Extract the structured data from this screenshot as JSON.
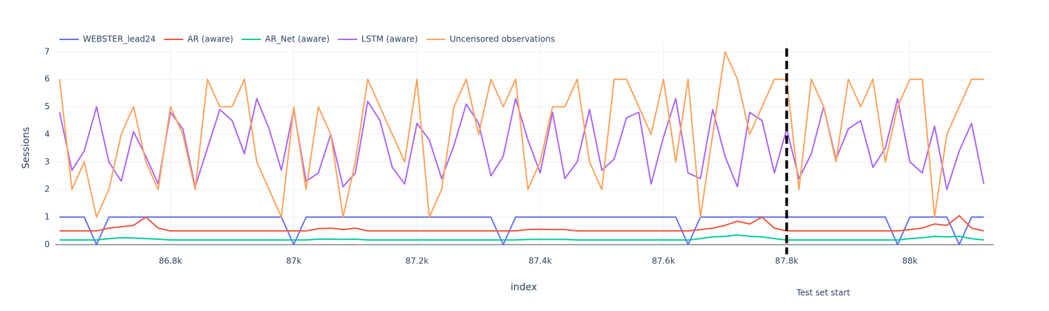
{
  "chart_data": {
    "type": "line",
    "x_label": "index",
    "y_label": "Sessions",
    "x": [
      86620,
      86640,
      86660,
      86680,
      86700,
      86720,
      86740,
      86760,
      86780,
      86800,
      86820,
      86840,
      86860,
      86880,
      86900,
      86920,
      86940,
      86960,
      86980,
      87000,
      87020,
      87040,
      87060,
      87080,
      87100,
      87120,
      87140,
      87160,
      87180,
      87200,
      87220,
      87240,
      87260,
      87280,
      87300,
      87320,
      87340,
      87360,
      87380,
      87400,
      87420,
      87440,
      87460,
      87480,
      87500,
      87520,
      87540,
      87560,
      87580,
      87600,
      87620,
      87640,
      87660,
      87680,
      87700,
      87720,
      87740,
      87760,
      87780,
      87800,
      87820,
      87840,
      87860,
      87880,
      87900,
      87920,
      87940,
      87960,
      87980,
      88000,
      88020,
      88040,
      88060,
      88080,
      88100,
      88120
    ],
    "series": [
      {
        "name": "WEBSTER_lead24",
        "color": "#636efa",
        "values": [
          1,
          1,
          1,
          0,
          1,
          1,
          1,
          1,
          1,
          1,
          1,
          1,
          1,
          1,
          1,
          1,
          1,
          1,
          1,
          0,
          1,
          1,
          1,
          1,
          1,
          1,
          1,
          1,
          1,
          1,
          1,
          1,
          1,
          1,
          1,
          1,
          0,
          1,
          1,
          1,
          1,
          1,
          1,
          1,
          1,
          1,
          1,
          1,
          1,
          1,
          1,
          0,
          1,
          1,
          1,
          1,
          1,
          1,
          1,
          1,
          1,
          1,
          1,
          1,
          1,
          1,
          1,
          1,
          0,
          1,
          1,
          1,
          1,
          0,
          1,
          1
        ]
      },
      {
        "name": "AR (aware)",
        "color": "#ef553b",
        "values": [
          0.5,
          0.5,
          0.5,
          0.5,
          0.6,
          0.65,
          0.7,
          1.0,
          0.6,
          0.5,
          0.5,
          0.5,
          0.5,
          0.5,
          0.5,
          0.5,
          0.5,
          0.5,
          0.5,
          0.5,
          0.5,
          0.58,
          0.6,
          0.55,
          0.6,
          0.5,
          0.5,
          0.5,
          0.5,
          0.5,
          0.5,
          0.5,
          0.5,
          0.5,
          0.5,
          0.5,
          0.5,
          0.5,
          0.55,
          0.56,
          0.55,
          0.55,
          0.5,
          0.5,
          0.5,
          0.5,
          0.5,
          0.5,
          0.5,
          0.5,
          0.5,
          0.5,
          0.55,
          0.6,
          0.7,
          0.85,
          0.75,
          1.0,
          0.6,
          0.5,
          0.5,
          0.5,
          0.5,
          0.5,
          0.5,
          0.5,
          0.5,
          0.5,
          0.5,
          0.55,
          0.6,
          0.75,
          0.7,
          1.05,
          0.6,
          0.5
        ]
      },
      {
        "name": "AR_Net (aware)",
        "color": "#00cc96",
        "values": [
          0.17,
          0.17,
          0.17,
          0.17,
          0.22,
          0.25,
          0.24,
          0.22,
          0.2,
          0.17,
          0.17,
          0.17,
          0.17,
          0.17,
          0.17,
          0.17,
          0.17,
          0.17,
          0.17,
          0.17,
          0.17,
          0.2,
          0.2,
          0.19,
          0.2,
          0.17,
          0.17,
          0.17,
          0.17,
          0.17,
          0.17,
          0.17,
          0.17,
          0.17,
          0.17,
          0.17,
          0.17,
          0.17,
          0.19,
          0.19,
          0.19,
          0.19,
          0.17,
          0.17,
          0.17,
          0.17,
          0.17,
          0.17,
          0.17,
          0.17,
          0.17,
          0.17,
          0.22,
          0.28,
          0.3,
          0.35,
          0.3,
          0.28,
          0.22,
          0.17,
          0.17,
          0.17,
          0.17,
          0.17,
          0.17,
          0.17,
          0.17,
          0.17,
          0.17,
          0.22,
          0.25,
          0.3,
          0.28,
          0.3,
          0.22,
          0.17
        ]
      },
      {
        "name": "LSTM (aware)",
        "color": "#ab63fa",
        "values": [
          4.8,
          2.7,
          3.4,
          5.0,
          3.0,
          2.3,
          4.1,
          3.2,
          2.2,
          4.8,
          4.2,
          2.1,
          3.5,
          4.9,
          4.5,
          3.3,
          5.3,
          4.2,
          2.7,
          4.9,
          2.3,
          2.6,
          4.0,
          2.1,
          2.6,
          5.2,
          4.5,
          2.8,
          2.2,
          4.4,
          3.8,
          2.4,
          3.6,
          5.1,
          4.4,
          2.5,
          3.2,
          5.3,
          3.8,
          2.6,
          4.8,
          2.4,
          3.0,
          4.9,
          2.7,
          3.1,
          4.6,
          4.8,
          2.2,
          3.9,
          5.3,
          2.6,
          2.4,
          4.9,
          3.2,
          2.1,
          4.8,
          4.5,
          2.6,
          4.2,
          2.4,
          3.3,
          5.0,
          3.1,
          4.2,
          4.5,
          2.8,
          3.5,
          5.3,
          3.0,
          2.6,
          4.3,
          2.0,
          3.4,
          4.4,
          2.2
        ]
      },
      {
        "name": "Uncensored observations",
        "color": "#ffa15a",
        "values": [
          6,
          2,
          3,
          1,
          2,
          4,
          5,
          3,
          2,
          5,
          4,
          2,
          6,
          5,
          5,
          6,
          3,
          2,
          1,
          5,
          2,
          5,
          4,
          1,
          3,
          6,
          5,
          4,
          3,
          6,
          1,
          2,
          5,
          6,
          4,
          6,
          5,
          6,
          2,
          3,
          5,
          5,
          6,
          3,
          2,
          6,
          6,
          5,
          4,
          6,
          3,
          6,
          1,
          4,
          7,
          6,
          4,
          5,
          6,
          6,
          2,
          6,
          5,
          3,
          6,
          5,
          6,
          3,
          5,
          6,
          6,
          1,
          4,
          5,
          6,
          6
        ]
      }
    ],
    "xlim": [
      86613,
      88136
    ],
    "ylim": [
      0,
      7.37
    ],
    "xticks": [
      {
        "value": 86800,
        "label": "86.8k"
      },
      {
        "value": 87000,
        "label": "87k"
      },
      {
        "value": 87200,
        "label": "87.2k"
      },
      {
        "value": 87400,
        "label": "87.4k"
      },
      {
        "value": 87600,
        "label": "87.6k"
      },
      {
        "value": 87800,
        "label": "87.8k"
      },
      {
        "value": 88000,
        "label": "88k"
      }
    ],
    "yticks": [
      0,
      1,
      2,
      3,
      4,
      5,
      6,
      7
    ],
    "grid": true,
    "vline": {
      "x": 87800,
      "label": "Test set start",
      "color": "#000000"
    },
    "legend": "top-left"
  }
}
